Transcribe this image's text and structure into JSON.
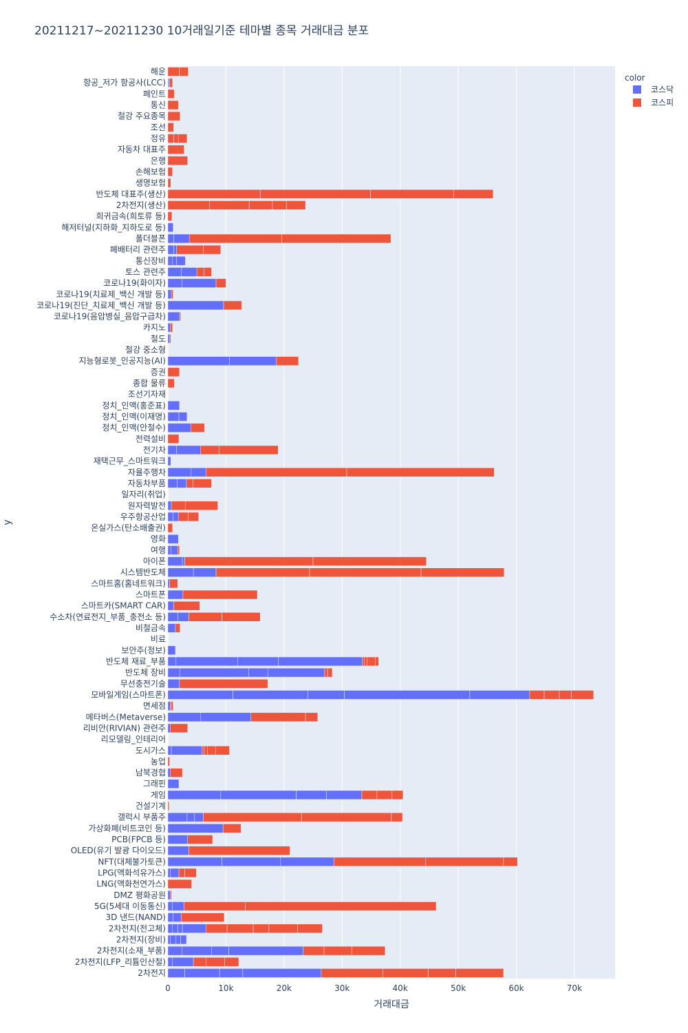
{
  "chart_data": {
    "type": "bar",
    "orientation": "horizontal",
    "barmode": "stack",
    "title": "20211217~20211230 10거래일기준 테마별 종목 거래대금 분포",
    "xlabel": "거래대금",
    "ylabel": "y",
    "xlim": [
      0,
      77000
    ],
    "xticks": [
      0,
      10000,
      20000,
      30000,
      40000,
      50000,
      60000,
      70000
    ],
    "xtick_labels": [
      "0",
      "10k",
      "20k",
      "30k",
      "40k",
      "50k",
      "60k",
      "70k"
    ],
    "grid": true,
    "legend": {
      "title": "color",
      "position": "top-right",
      "entries": [
        {
          "name": "코스닥",
          "color": "#636efa"
        },
        {
          "name": "코스피",
          "color": "#ef553b"
        }
      ]
    },
    "categories": [
      "해운",
      "항공_저가 항공사(LCC)",
      "페인트",
      "통신",
      "철강 주요종목",
      "조선",
      "정유",
      "자동차 대표주",
      "은행",
      "손해보험",
      "생명보험",
      "반도체 대표주(생산)",
      "2차전지(생산)",
      "희귀금속(희토류 등)",
      "해저터널(지하화_지하도로 등)",
      "폴더블폰",
      "폐배터리 관련주",
      "통신장비",
      "토스 관련주",
      "코로나19(화이자)",
      "코로나19(치료제_백신 개발 등)",
      "코로나19(진단_치료제_백신 개발 등)",
      "코로나19(음압병실_음압구급차)",
      "카지노",
      "철도",
      "철강 중소형",
      "지능형로봇_인공지능(AI)",
      "증권",
      "종합 물류",
      "조선기자재",
      "정치_인맥(홍준표)",
      "정치_인맥(이재명)",
      "정치_인맥(안철수)",
      "전력설비",
      "전기차",
      "재택근무_스마트워크",
      "자율주행차",
      "자동차부품",
      "일자리(취업)",
      "원자력발전",
      "우주항공산업",
      "온실가스(탄소배출권)",
      "영화",
      "여행",
      "아이폰",
      "시스템반도체",
      "스마트홈(홈네트워크)",
      "스마트폰",
      "스마트카(SMART CAR)",
      "수소차(연료전지_부품_충전소 등)",
      "비철금속",
      "비료",
      "보안주(정보)",
      "반도체 재료_부품",
      "반도체 장비",
      "무선충전기술",
      "모바일게임(스마트폰)",
      "면세점",
      "메타버스(Metaverse)",
      "리비안(RIVIAN) 관련주",
      "리모델링_인테리어",
      "도시가스",
      "농업",
      "남북경협",
      "그래핀",
      "게임",
      "건설기계",
      "갤럭시 부품주",
      "가상화폐(비트코인 등)",
      "PCB(FPCB 등)",
      "OLED(유기 발광 다이오드)",
      "NFT(대체불가토큰)",
      "LPG(액화석유가스)",
      "LNG(액화천연가스)",
      "DMZ 평화공원",
      "5G(5세대 이동통신)",
      "3D 낸드(NAND)",
      "2차전지(전고체)",
      "2차전지(장비)",
      "2차전지(소재_부품)",
      "2차전지(LFP_리튬인산철)",
      "2차전지"
    ],
    "series": [
      {
        "name": "코스닥",
        "values": [
          0,
          300,
          0,
          0,
          0,
          0,
          0,
          0,
          0,
          0,
          0,
          0,
          0,
          0,
          900,
          3700,
          1500,
          3000,
          5000,
          8300,
          600,
          9600,
          2000,
          400,
          300,
          0,
          18700,
          0,
          0,
          0,
          2000,
          3300,
          4000,
          0,
          5600,
          500,
          6600,
          3200,
          0,
          600,
          1800,
          0,
          1800,
          1700,
          2900,
          8300,
          300,
          2600,
          1000,
          3600,
          1300,
          0,
          1300,
          33500,
          27000,
          2000,
          62300,
          400,
          14300,
          400,
          0,
          5900,
          0,
          400,
          1900,
          33400,
          0,
          6100,
          9500,
          3400,
          3600,
          28600,
          1900,
          0,
          400,
          2800,
          2300,
          6600,
          3200,
          23300,
          4400,
          26400
        ],
        "segments": [
          [],
          [
            100,
            200
          ],
          [],
          [],
          [],
          [],
          [],
          [],
          [],
          [],
          [],
          [],
          [],
          [],
          [
            900
          ],
          [
            1000,
            2700
          ],
          [
            1000,
            500
          ],
          [
            800,
            700,
            1500
          ],
          [
            2300,
            2700
          ],
          [
            2400,
            5900
          ],
          [
            600
          ],
          [
            9600
          ],
          [
            2000
          ],
          [
            400
          ],
          [
            300
          ],
          [],
          [
            10600,
            8100
          ],
          [],
          [],
          [],
          [
            2000
          ],
          [
            1900,
            1400
          ],
          [
            4000
          ],
          [],
          [
            1500,
            4100
          ],
          [
            500
          ],
          [
            4000,
            2600
          ],
          [
            1600,
            1600
          ],
          [],
          [
            600
          ],
          [
            900,
            900
          ],
          [],
          [
            1800
          ],
          [
            500,
            1200
          ],
          [
            2500,
            400
          ],
          [
            4400,
            3900
          ],
          [
            300
          ],
          [
            2600
          ],
          [
            1000
          ],
          [
            1700,
            1900
          ],
          [
            1300
          ],
          [],
          [
            1300
          ],
          [
            1400,
            10600,
            7000,
            14500
          ],
          [
            2100,
            11800,
            3300,
            9800
          ],
          [
            2000
          ],
          [
            11200,
            12900,
            6300,
            21600,
            10300
          ],
          [
            400
          ],
          [
            5600,
            8700
          ],
          [
            400
          ],
          [],
          [
            600,
            5300
          ],
          [],
          [
            400
          ],
          [
            1900
          ],
          [
            9100,
            13000,
            5200,
            6100
          ],
          [],
          [
            3300,
            1300,
            1500
          ],
          [
            9500
          ],
          [
            3400
          ],
          [
            3600
          ],
          [
            9300,
            10100,
            9200
          ],
          [
            400,
            1500
          ],
          [],
          [
            400
          ],
          [
            800,
            2000
          ],
          [
            900,
            1400
          ],
          [
            800,
            900,
            800,
            4100
          ],
          [
            400,
            1000,
            800,
            1000
          ],
          [
            2400,
            5100,
            3000,
            12800
          ],
          [
            800,
            3600
          ],
          [
            2900,
            6000,
            4000,
            13500
          ]
        ]
      },
      {
        "name": "코스피",
        "values": [
          3500,
          500,
          1100,
          1800,
          2100,
          1000,
          3300,
          2800,
          3400,
          800,
          500,
          56000,
          23700,
          700,
          0,
          34700,
          7600,
          0,
          2500,
          1700,
          300,
          3100,
          200,
          400,
          200,
          0,
          3800,
          2000,
          1100,
          0,
          0,
          0,
          2300,
          1900,
          13400,
          0,
          49600,
          4300,
          0,
          8000,
          3500,
          800,
          0,
          300,
          41600,
          49600,
          1400,
          12800,
          4500,
          12300,
          800,
          0,
          0,
          2800,
          1300,
          15200,
          11000,
          500,
          11500,
          3000,
          0,
          4700,
          300,
          2100,
          0,
          7100,
          200,
          34300,
          3100,
          4300,
          17400,
          31600,
          3000,
          4100,
          200,
          43400,
          7400,
          20000,
          0,
          14100,
          7800,
          31400
        ],
        "segments": [
          [
            2000,
            1500
          ],
          [
            500
          ],
          [
            1100
          ],
          [
            1800
          ],
          [
            2100
          ],
          [
            1000
          ],
          [
            1000,
            800,
            1500
          ],
          [
            2800
          ],
          [
            3400
          ],
          [
            800
          ],
          [
            500
          ],
          [
            15900,
            19000,
            14300,
            6800
          ],
          [
            7200,
            6800,
            4000,
            2400,
            3300
          ],
          [
            700
          ],
          [],
          [
            15900,
            18800
          ],
          [
            4600,
            3000
          ],
          [],
          [
            1200,
            1300
          ],
          [
            1700
          ],
          [
            300
          ],
          [
            3100
          ],
          [
            200
          ],
          [
            400
          ],
          [
            200
          ],
          [],
          [
            3800
          ],
          [
            2000
          ],
          [
            1100
          ],
          [],
          [],
          [],
          [
            2300
          ],
          [
            1900
          ],
          [
            3200,
            10200
          ],
          [],
          [
            24200,
            25400
          ],
          [
            1100,
            3200
          ],
          [],
          [
            2400,
            5600
          ],
          [
            1700,
            1800
          ],
          [
            800
          ],
          [],
          [
            300
          ],
          [
            22100,
            19500
          ],
          [
            16100,
            19200,
            14300
          ],
          [
            1400
          ],
          [
            12800
          ],
          [
            4500
          ],
          [
            5700,
            6600
          ],
          [
            800
          ],
          [],
          [],
          [
            300,
            500,
            1400,
            600
          ],
          [
            500,
            800
          ],
          [
            15200
          ],
          [
            2500,
            2600,
            2100,
            3800
          ],
          [
            200,
            300
          ],
          [
            9400,
            2100
          ],
          [
            3000
          ],
          [],
          [
            300,
            600,
            1400,
            2400
          ],
          [
            300
          ],
          [
            2100
          ],
          [],
          [
            2600,
            2600,
            1900
          ],
          [
            200
          ],
          [
            16900,
            15500,
            1900
          ],
          [
            3100
          ],
          [
            4300
          ],
          [
            17400
          ],
          [
            15800,
            13400,
            2400
          ],
          [
            1000,
            2000
          ],
          [
            4100
          ],
          [
            200
          ],
          [
            10500,
            32900
          ],
          [
            7400
          ],
          [
            3600,
            4500,
            2700,
            4900,
            4300
          ],
          [],
          [
            3600,
            4800,
            5700
          ],
          [
            2200,
            3200,
            2400
          ],
          [
            10600,
            7800,
            4800,
            8200
          ]
        ]
      }
    ]
  }
}
